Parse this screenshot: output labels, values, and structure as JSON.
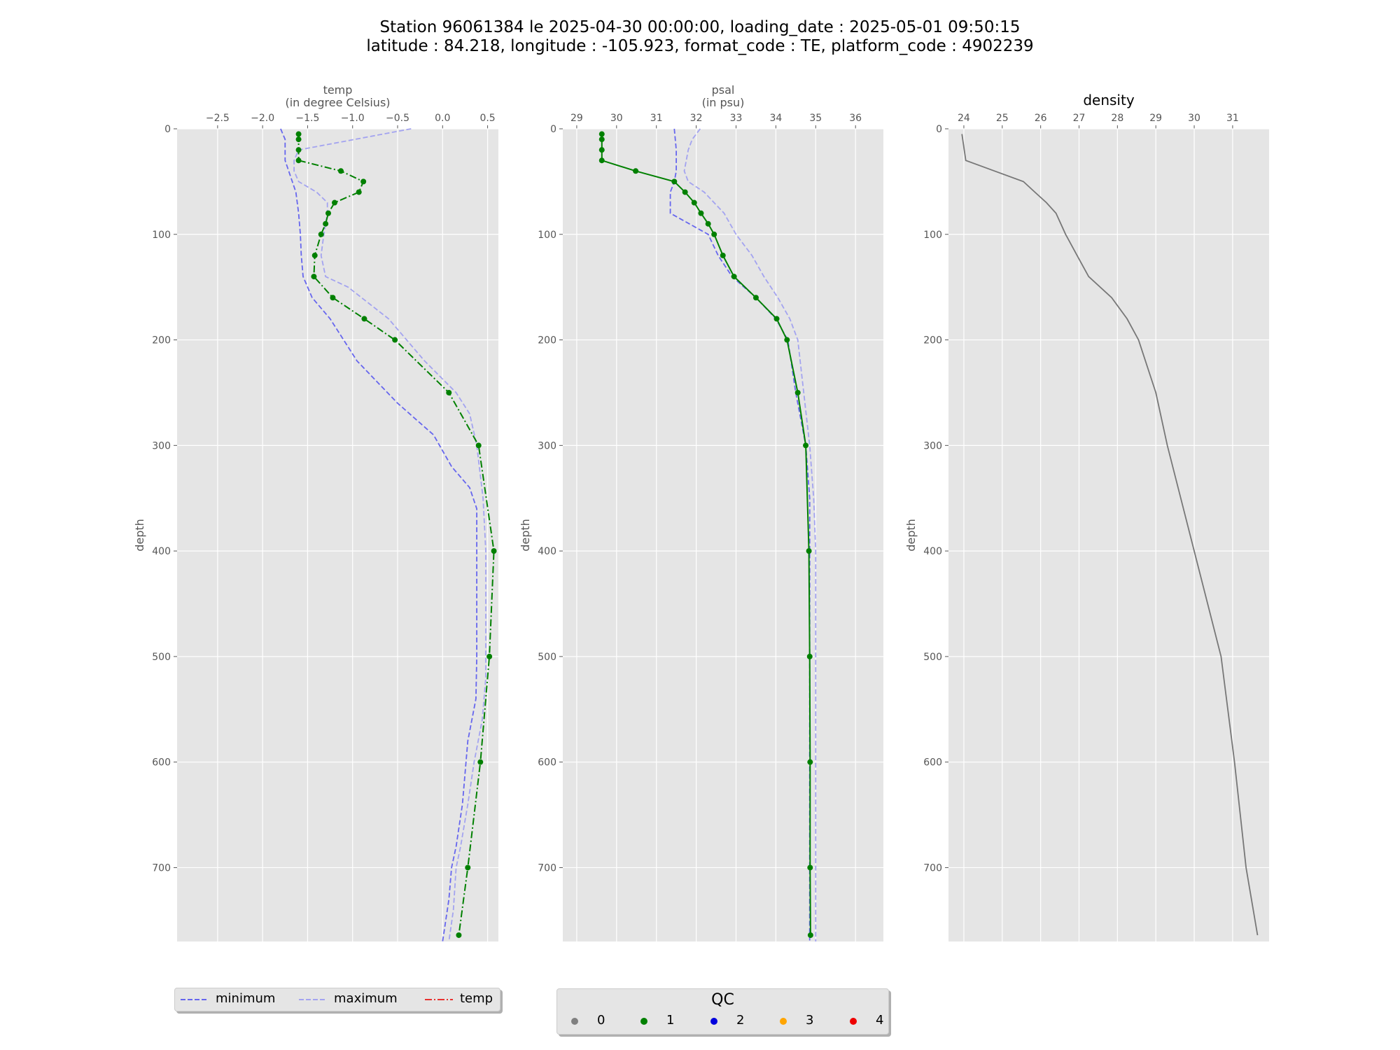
{
  "title": {
    "line1": "Station 96061384 le 2025-04-30 00:00:00, loading_date : 2025-05-01 09:50:15",
    "line2": "latitude : 84.218, longitude : -105.923, format_code : TE, platform_code : 4902239"
  },
  "legend_temp": {
    "items": [
      {
        "label": "minimum",
        "color": "#6666ee",
        "style": "dashed"
      },
      {
        "label": "maximum",
        "color": "#a3a3f0",
        "style": "dashed"
      },
      {
        "label": "temp",
        "color": "#e8312f",
        "style": "dashdot"
      }
    ]
  },
  "legend_qc": {
    "title": "QC",
    "items": [
      {
        "label": "0",
        "color": "#808080"
      },
      {
        "label": "1",
        "color": "#008000"
      },
      {
        "label": "2",
        "color": "#0000dd"
      },
      {
        "label": "3",
        "color": "#ffa500"
      },
      {
        "label": "4",
        "color": "#ee0000"
      }
    ]
  },
  "chart_data": [
    {
      "type": "line",
      "xlabel": "temp\n(in degree Celsius)",
      "ylabel": "depth",
      "xlim": [
        -2.95,
        0.62
      ],
      "ylim": [
        770,
        0
      ],
      "xticks": [
        -2.5,
        -2.0,
        -1.5,
        -1.0,
        -0.5,
        0.0,
        0.5
      ],
      "xtick_labels": [
        "−2.5",
        "−2.0",
        "−1.5",
        "−1.0",
        "−0.5",
        "0.0",
        "0.5"
      ],
      "yticks": [
        0,
        100,
        200,
        300,
        400,
        500,
        600,
        700
      ],
      "grid": true,
      "series": [
        {
          "name": "minimum",
          "color": "#6666ee",
          "style": "dashed",
          "x": [
            -1.8,
            -1.75,
            -1.75,
            -1.75,
            -1.63,
            -1.6,
            -1.58,
            -1.57,
            -1.55,
            -1.45,
            -1.25,
            -0.95,
            -0.5,
            -0.1,
            0.1,
            0.3,
            0.38,
            0.38,
            0.38,
            0.38,
            0.37,
            0.28,
            0.22,
            0.15,
            0.1,
            0.07,
            0.0
          ],
          "y": [
            0,
            10,
            20,
            30,
            60,
            80,
            100,
            120,
            140,
            160,
            180,
            220,
            260,
            290,
            320,
            340,
            360,
            400,
            450,
            500,
            540,
            580,
            640,
            680,
            700,
            730,
            770
          ]
        },
        {
          "name": "maximum",
          "color": "#a3a3f0",
          "style": "dashed",
          "x": [
            -0.35,
            -1.6,
            -1.65,
            -1.65,
            -1.6,
            -1.4,
            -1.28,
            -1.28,
            -1.32,
            -1.35,
            -1.3,
            -1.05,
            -0.6,
            -0.2,
            0.15,
            0.3,
            0.38,
            0.45,
            0.48,
            0.48,
            0.48,
            0.48,
            0.44,
            0.35,
            0.28,
            0.2,
            0.15,
            0.12,
            0.07
          ],
          "y": [
            0,
            20,
            30,
            40,
            50,
            60,
            70,
            80,
            100,
            120,
            140,
            150,
            180,
            220,
            250,
            270,
            300,
            350,
            400,
            450,
            500,
            520,
            560,
            600,
            640,
            680,
            700,
            740,
            770
          ]
        },
        {
          "name": "temp",
          "color": "#008000",
          "style": "dashdot",
          "markers": true,
          "x": [
            -1.6,
            -1.6,
            -1.6,
            -1.6,
            -1.13,
            -0.88,
            -0.93,
            -1.2,
            -1.27,
            -1.3,
            -1.35,
            -1.42,
            -1.43,
            -1.22,
            -0.87,
            -0.53,
            0.07,
            0.4,
            0.57,
            0.52,
            0.42,
            0.28,
            0.18
          ],
          "y": [
            5,
            10,
            20,
            30,
            40,
            50,
            60,
            70,
            80,
            90,
            100,
            120,
            140,
            160,
            180,
            200,
            250,
            300,
            400,
            500,
            600,
            700,
            764
          ],
          "qc": 1
        }
      ]
    },
    {
      "type": "line",
      "xlabel": "psal\n(in psu)",
      "ylabel": "depth",
      "xlim": [
        28.65,
        36.7
      ],
      "ylim": [
        770,
        0
      ],
      "xticks": [
        29,
        30,
        31,
        32,
        33,
        34,
        35,
        36
      ],
      "xtick_labels": [
        "29",
        "30",
        "31",
        "32",
        "33",
        "34",
        "35",
        "36"
      ],
      "yticks": [
        0,
        100,
        200,
        300,
        400,
        500,
        600,
        700
      ],
      "grid": true,
      "series": [
        {
          "name": "minimum",
          "color": "#6666ee",
          "style": "dashed",
          "x": [
            31.45,
            31.5,
            31.5,
            31.5,
            31.45,
            31.35,
            31.35,
            32.3,
            32.55,
            32.9,
            33.5,
            34.0,
            34.3,
            34.5,
            34.75,
            34.85,
            34.85,
            34.85,
            34.85,
            34.85,
            34.85,
            34.85
          ],
          "y": [
            0,
            20,
            30,
            40,
            50,
            60,
            80,
            100,
            120,
            140,
            160,
            180,
            200,
            250,
            300,
            350,
            400,
            500,
            600,
            700,
            740,
            770
          ]
        },
        {
          "name": "maximum",
          "color": "#a3a3f0",
          "style": "dashed",
          "x": [
            32.1,
            31.9,
            31.8,
            31.75,
            31.7,
            31.8,
            32.2,
            32.7,
            33.0,
            33.4,
            33.7,
            34.05,
            34.35,
            34.55,
            34.7,
            34.85,
            34.95,
            35.0,
            35.0,
            35.0,
            35.0,
            35.0
          ],
          "y": [
            0,
            10,
            20,
            30,
            40,
            50,
            60,
            80,
            100,
            120,
            140,
            160,
            180,
            200,
            250,
            300,
            350,
            400,
            500,
            600,
            700,
            770
          ]
        },
        {
          "name": "psal",
          "color": "#008000",
          "style": "solid",
          "markers": true,
          "x": [
            29.63,
            29.63,
            29.63,
            29.63,
            30.48,
            31.45,
            31.72,
            31.95,
            32.12,
            32.3,
            32.45,
            32.67,
            32.95,
            33.5,
            34.02,
            34.28,
            34.55,
            34.75,
            34.83,
            34.85,
            34.86,
            34.86,
            34.87
          ],
          "y": [
            5,
            10,
            20,
            30,
            40,
            50,
            60,
            70,
            80,
            90,
            100,
            120,
            140,
            160,
            180,
            200,
            250,
            300,
            400,
            500,
            600,
            700,
            764
          ],
          "qc": 1
        }
      ]
    },
    {
      "type": "line",
      "title": "density",
      "ylabel": "depth",
      "xlim": [
        23.6,
        31.95
      ],
      "ylim": [
        770,
        0
      ],
      "xticks": [
        24,
        25,
        26,
        27,
        28,
        29,
        30,
        31
      ],
      "xtick_labels": [
        "24",
        "25",
        "26",
        "27",
        "28",
        "29",
        "30",
        "31"
      ],
      "yticks": [
        0,
        100,
        200,
        300,
        400,
        500,
        600,
        700
      ],
      "grid": true,
      "series": [
        {
          "name": "density",
          "color": "#777777",
          "style": "solid",
          "x": [
            23.95,
            24.05,
            24.8,
            25.55,
            25.85,
            26.15,
            26.4,
            26.65,
            26.95,
            27.25,
            27.85,
            28.25,
            28.55,
            29.0,
            29.3,
            29.65,
            30.0,
            30.35,
            30.7,
            31.05,
            31.35,
            31.65
          ],
          "y": [
            5,
            30,
            40,
            50,
            60,
            70,
            80,
            100,
            120,
            140,
            160,
            180,
            200,
            250,
            300,
            350,
            400,
            450,
            500,
            600,
            700,
            764
          ]
        }
      ]
    }
  ]
}
